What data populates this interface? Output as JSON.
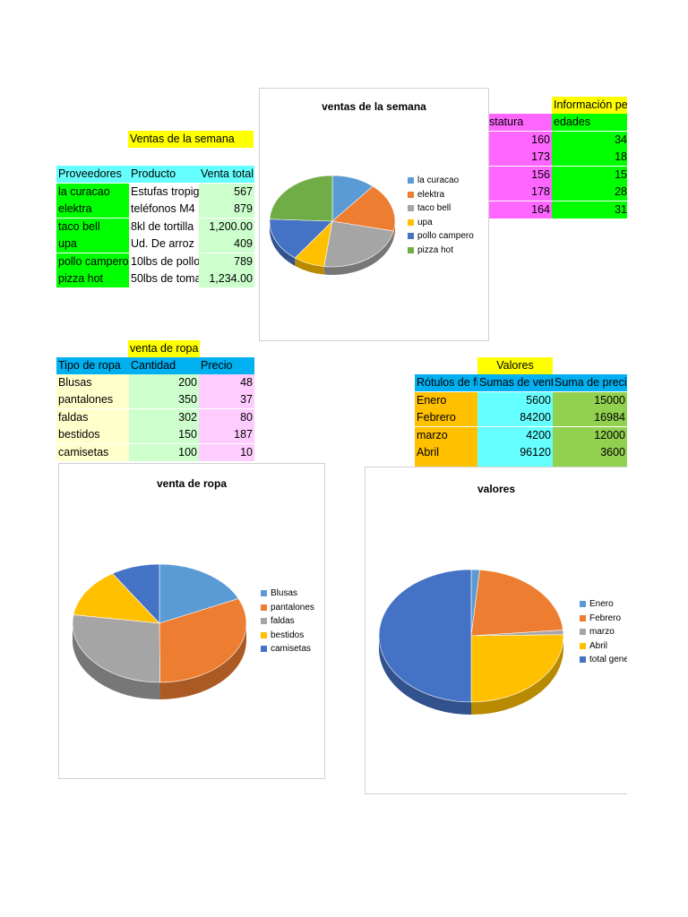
{
  "colors": {
    "yellow": "#ffff00",
    "cyan": "#66ffff",
    "green": "#00ff00",
    "lightgreen": "#ccffcc",
    "pink": "#ff99ff",
    "lightpink": "#ffccff",
    "lightyellow": "#ffffcc",
    "blue": "#00b0f0",
    "orange": "#ffc000",
    "olive": "#92d050",
    "pie": [
      "#5b9bd5",
      "#ed7d31",
      "#a5a5a5",
      "#ffc000",
      "#4472c4",
      "#70ad47"
    ]
  },
  "table_semana": {
    "title": "Ventas de la semana",
    "headers": [
      "Proveedores",
      "Producto",
      "Venta total"
    ],
    "rows": [
      [
        "la curacao",
        "Estufas tropig",
        "567"
      ],
      [
        "elektra",
        "teléfonos M4",
        "879"
      ],
      [
        "taco bell",
        "8kl de tortilla",
        "1,200.00"
      ],
      [
        "upa",
        "Ud. De arroz",
        "409"
      ],
      [
        "pollo campero",
        "10lbs de pollo",
        "789"
      ],
      [
        "pizza hot",
        "50lbs de toma",
        "1,234.00"
      ]
    ]
  },
  "table_info": {
    "title": "Información pe",
    "headers": [
      "statura",
      "edades"
    ],
    "rows": [
      [
        "160",
        "34"
      ],
      [
        "173",
        "18"
      ],
      [
        "156",
        "15"
      ],
      [
        "178",
        "28"
      ],
      [
        "164",
        "31"
      ]
    ]
  },
  "table_ropa": {
    "title": "venta de ropa",
    "headers": [
      "Tipo de ropa",
      "Cantidad",
      "Precio"
    ],
    "rows": [
      [
        "Blusas",
        "200",
        "48"
      ],
      [
        "pantalones",
        "350",
        "37"
      ],
      [
        "faldas",
        "302",
        "80"
      ],
      [
        "bestidos",
        "150",
        "187"
      ],
      [
        "camisetas",
        "100",
        "10"
      ]
    ]
  },
  "table_valores": {
    "title": "Valores",
    "headers": [
      "Rótulos de fi",
      "Sumas de vent",
      "Suma de preci"
    ],
    "rows": [
      [
        "Enero",
        "5600",
        "15000"
      ],
      [
        "Febrero",
        "84200",
        "16984"
      ],
      [
        "marzo",
        "4200",
        "12000"
      ],
      [
        "Abril",
        "96120",
        "3600"
      ]
    ]
  },
  "chart_data": [
    {
      "type": "pie",
      "title": "ventas de la semana",
      "categories": [
        "la curacao",
        "elektra",
        "taco bell",
        "upa",
        "pollo campero",
        "pizza hot"
      ],
      "values": [
        567,
        879,
        1200,
        409,
        789,
        1234
      ],
      "legend": "right"
    },
    {
      "type": "pie",
      "title": "venta de ropa",
      "categories": [
        "Blusas",
        "pantalones",
        "faldas",
        "bestidos",
        "camisetas"
      ],
      "values": [
        200,
        350,
        302,
        150,
        100
      ],
      "legend": "right"
    },
    {
      "type": "pie",
      "title": "valores",
      "categories": [
        "Enero",
        "Febrero",
        "marzo",
        "Abril",
        "total gene"
      ],
      "values": [
        5600,
        84200,
        4200,
        96120,
        190120
      ],
      "legend": "right"
    }
  ]
}
